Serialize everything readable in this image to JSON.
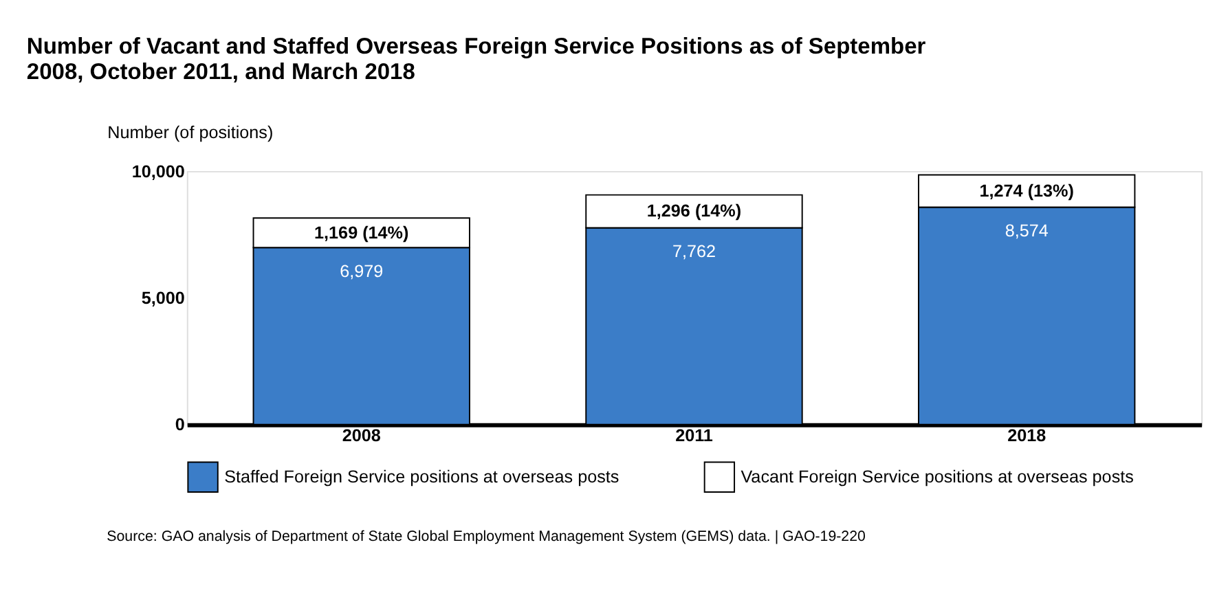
{
  "chart_data": {
    "type": "bar",
    "title": "Number of Vacant and Staffed Overseas Foreign Service Positions as of September 2008, October 2011, and March 2018",
    "ylabel": "Number (of positions)",
    "categories": [
      "2008",
      "2011",
      "2018"
    ],
    "stacked": true,
    "series": [
      {
        "name": "Staffed Foreign Service positions at overseas posts",
        "color": "#3b7dc8",
        "values": [
          6979,
          7762,
          8574
        ],
        "value_labels": [
          "6,979",
          "7,762",
          "8,574"
        ]
      },
      {
        "name": "Vacant Foreign Service positions at overseas posts",
        "color": "#ffffff",
        "values": [
          1169,
          1296,
          1274
        ],
        "value_labels": [
          "1,169 (14%)",
          "1,296 (14%)",
          "1,274 (13%)"
        ]
      }
    ],
    "ylim": [
      0,
      10000
    ],
    "yticks": [
      0,
      {
        "value": 5000,
        "label": "5,000"
      },
      {
        "value": 10000,
        "label": "10,000"
      }
    ],
    "grid": false,
    "legend": "bottom",
    "annotations": [
      "Source: GAO analysis of Department of State Global Employment Management System (GEMS) data.  |  GAO-19-220"
    ]
  }
}
